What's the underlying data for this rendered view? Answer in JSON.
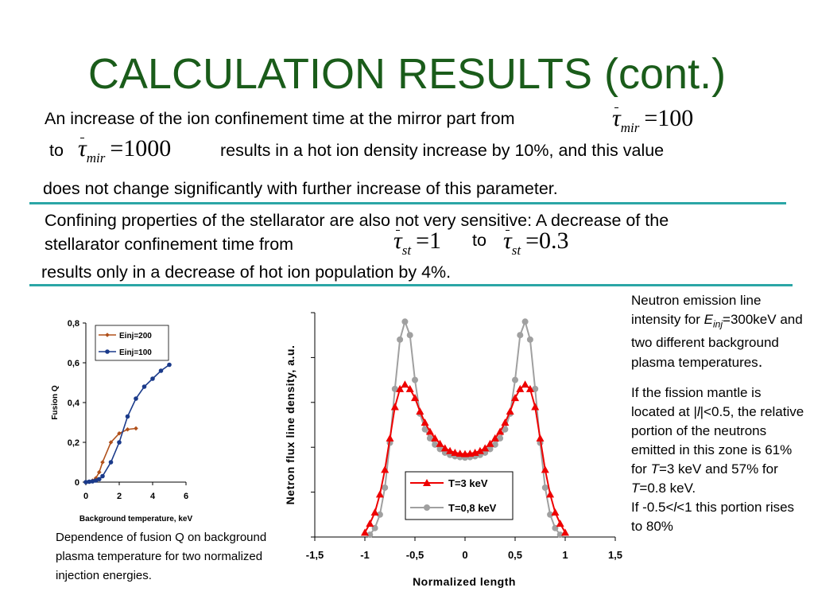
{
  "title": "CALCULATION RESULTS (cont.)",
  "para1": {
    "line1": "An increase of the ion confinement time at the mirror part from",
    "to": "to",
    "line2": "results in a hot ion density increase by 10%, and this value",
    "line3": "does not change significantly with further increase of this parameter.",
    "eq_from": {
      "symbol": "τ",
      "sub": "mir",
      "rhs": "=100"
    },
    "eq_to": {
      "symbol": "τ",
      "sub": "mir",
      "rhs": "=1000"
    }
  },
  "para2": {
    "line1": "Confining properties of the stellarator are also not very sensitive: A decrease of the",
    "line2": "stellarator confinement time from",
    "to": "to",
    "line3": "results only in a decrease of hot ion population by 4%.",
    "eq_from": {
      "symbol": "τ",
      "sub": "st",
      "rhs": "=1"
    },
    "eq_to": {
      "symbol": "τ",
      "sub": "st",
      "rhs": "=0.3"
    }
  },
  "side_note": {
    "n1": "Neutron emission line intensity for ",
    "n1_var": "E",
    "n1_sub": "inj",
    "n1_rest": "=300keV and two different background plasma temperatures",
    "n1_end": ".",
    "n2_a": "If the fission mantle is located at |",
    "n2_var": "l",
    "n2_b": "|<0.5, the relative portion of the neutrons emitted in this zone is 61% for ",
    "n2_t1": "T",
    "n2_c": "=3 keV and 57% for ",
    "n2_t2": "T",
    "n2_d": "=0.8 keV.",
    "n3_a": "If -0.5<",
    "n3_var": "l",
    "n3_b": "<1 this portion rises to 80%"
  },
  "caption": "Dependence of fusion Q on background plasma temperature for two normalized injection energies.",
  "colors": {
    "title": "#1a5c1a",
    "rule": "#2ba6a6",
    "einj200": "#b0501a",
    "einj100": "#1a3a8a",
    "t3": "#ee0000",
    "t08": "#a0a0a0"
  },
  "chart_data": [
    {
      "type": "line",
      "title": "",
      "xlabel": "Background temperature, keV",
      "ylabel": "Fusion Q",
      "xlim": [
        0,
        6
      ],
      "ylim": [
        0,
        0.8
      ],
      "xticks": [
        "0",
        "2",
        "4",
        "6"
      ],
      "yticks": [
        "0",
        "0,2",
        "0,4",
        "0,6",
        "0,8"
      ],
      "legend": "top-left",
      "series": [
        {
          "name": "Einj=200",
          "marker": "diamond",
          "x": [
            0,
            0.2,
            0.4,
            0.6,
            0.8,
            1.0,
            1.5,
            2.0,
            2.5,
            3.0
          ],
          "y": [
            0,
            0.003,
            0.008,
            0.02,
            0.05,
            0.1,
            0.2,
            0.245,
            0.265,
            0.27
          ]
        },
        {
          "name": "Einj=100",
          "marker": "circle",
          "x": [
            0,
            0.2,
            0.4,
            0.6,
            0.8,
            1.0,
            1.5,
            2.0,
            2.5,
            3.0,
            3.5,
            4.0,
            4.5,
            5.0
          ],
          "y": [
            0,
            0.002,
            0.004,
            0.008,
            0.015,
            0.03,
            0.1,
            0.2,
            0.33,
            0.42,
            0.48,
            0.52,
            0.56,
            0.59
          ]
        }
      ]
    },
    {
      "type": "line",
      "title": "",
      "xlabel": "Normalized length",
      "ylabel": "Netron flux line density, a.u.",
      "xlim": [
        -1.5,
        1.5
      ],
      "xticks": [
        "-1,5",
        "-1",
        "-0,5",
        "0",
        "0,5",
        "1",
        "1,5"
      ],
      "legend": "bottom-center",
      "series": [
        {
          "name": "T=3 keV",
          "marker": "triangle",
          "x": [
            -1,
            -0.95,
            -0.9,
            -0.85,
            -0.8,
            -0.75,
            -0.7,
            -0.65,
            -0.6,
            -0.55,
            -0.5,
            -0.45,
            -0.4,
            -0.35,
            -0.3,
            -0.25,
            -0.2,
            -0.15,
            -0.1,
            -0.05,
            0,
            0.05,
            0.1,
            0.15,
            0.2,
            0.25,
            0.3,
            0.35,
            0.4,
            0.45,
            0.5,
            0.55,
            0.6,
            0.65,
            0.7,
            0.75,
            0.8,
            0.85,
            0.9,
            0.95,
            1
          ],
          "y": [
            0.1,
            0.3,
            0.55,
            0.95,
            1.5,
            2.2,
            2.9,
            3.3,
            3.4,
            3.3,
            3.1,
            2.8,
            2.55,
            2.35,
            2.2,
            2.08,
            1.98,
            1.92,
            1.88,
            1.86,
            1.85,
            1.86,
            1.88,
            1.92,
            1.98,
            2.08,
            2.2,
            2.35,
            2.55,
            2.8,
            3.1,
            3.3,
            3.4,
            3.3,
            2.9,
            2.2,
            1.5,
            0.95,
            0.55,
            0.3,
            0.1
          ]
        },
        {
          "name": "T=0,8 keV",
          "marker": "circle",
          "x": [
            -0.95,
            -0.9,
            -0.85,
            -0.8,
            -0.75,
            -0.7,
            -0.65,
            -0.6,
            -0.55,
            -0.5,
            -0.45,
            -0.4,
            -0.35,
            -0.3,
            -0.25,
            -0.2,
            -0.15,
            -0.1,
            -0.05,
            0,
            0.05,
            0.1,
            0.15,
            0.2,
            0.25,
            0.3,
            0.35,
            0.4,
            0.45,
            0.5,
            0.55,
            0.6,
            0.65,
            0.7,
            0.75,
            0.8,
            0.85,
            0.9,
            0.95
          ],
          "y": [
            0.05,
            0.2,
            0.5,
            1.1,
            2.1,
            3.3,
            4.4,
            4.8,
            4.5,
            3.5,
            2.75,
            2.4,
            2.2,
            2.06,
            1.96,
            1.88,
            1.83,
            1.8,
            1.78,
            1.77,
            1.78,
            1.8,
            1.83,
            1.88,
            1.96,
            2.06,
            2.2,
            2.4,
            2.75,
            3.5,
            4.5,
            4.8,
            4.4,
            3.3,
            2.1,
            1.1,
            0.5,
            0.2,
            0.05
          ]
        }
      ]
    }
  ]
}
